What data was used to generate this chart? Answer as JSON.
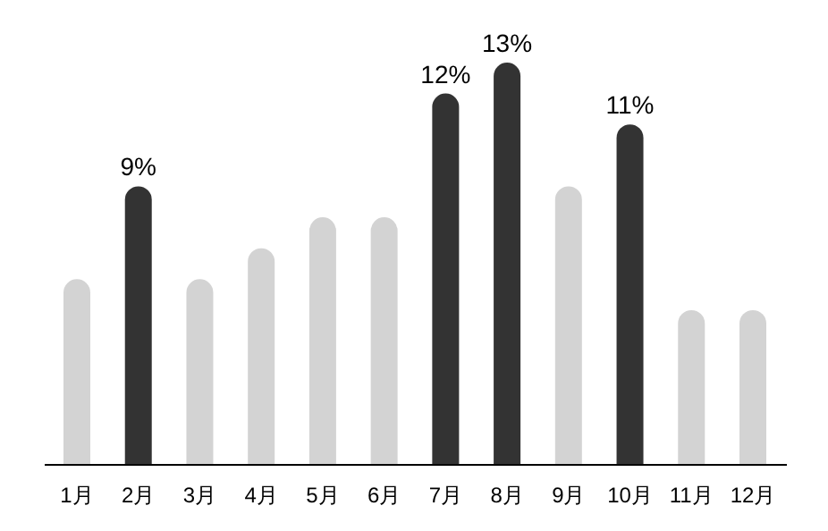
{
  "chart_data": {
    "type": "bar",
    "categories": [
      "1月",
      "2月",
      "3月",
      "4月",
      "5月",
      "6月",
      "7月",
      "8月",
      "9月",
      "10月",
      "11月",
      "12月"
    ],
    "values": [
      6,
      9,
      6,
      7,
      8,
      8,
      12,
      13,
      9,
      11,
      5,
      5
    ],
    "value_labels": [
      null,
      "9%",
      null,
      null,
      null,
      null,
      "12%",
      "13%",
      null,
      "11%",
      null,
      null
    ],
    "colors": [
      "#d3d3d3",
      "#333333",
      "#d3d3d3",
      "#d3d3d3",
      "#d3d3d3",
      "#d3d3d3",
      "#333333",
      "#333333",
      "#d3d3d3",
      "#333333",
      "#d3d3d3",
      "#d3d3d3"
    ]
  }
}
